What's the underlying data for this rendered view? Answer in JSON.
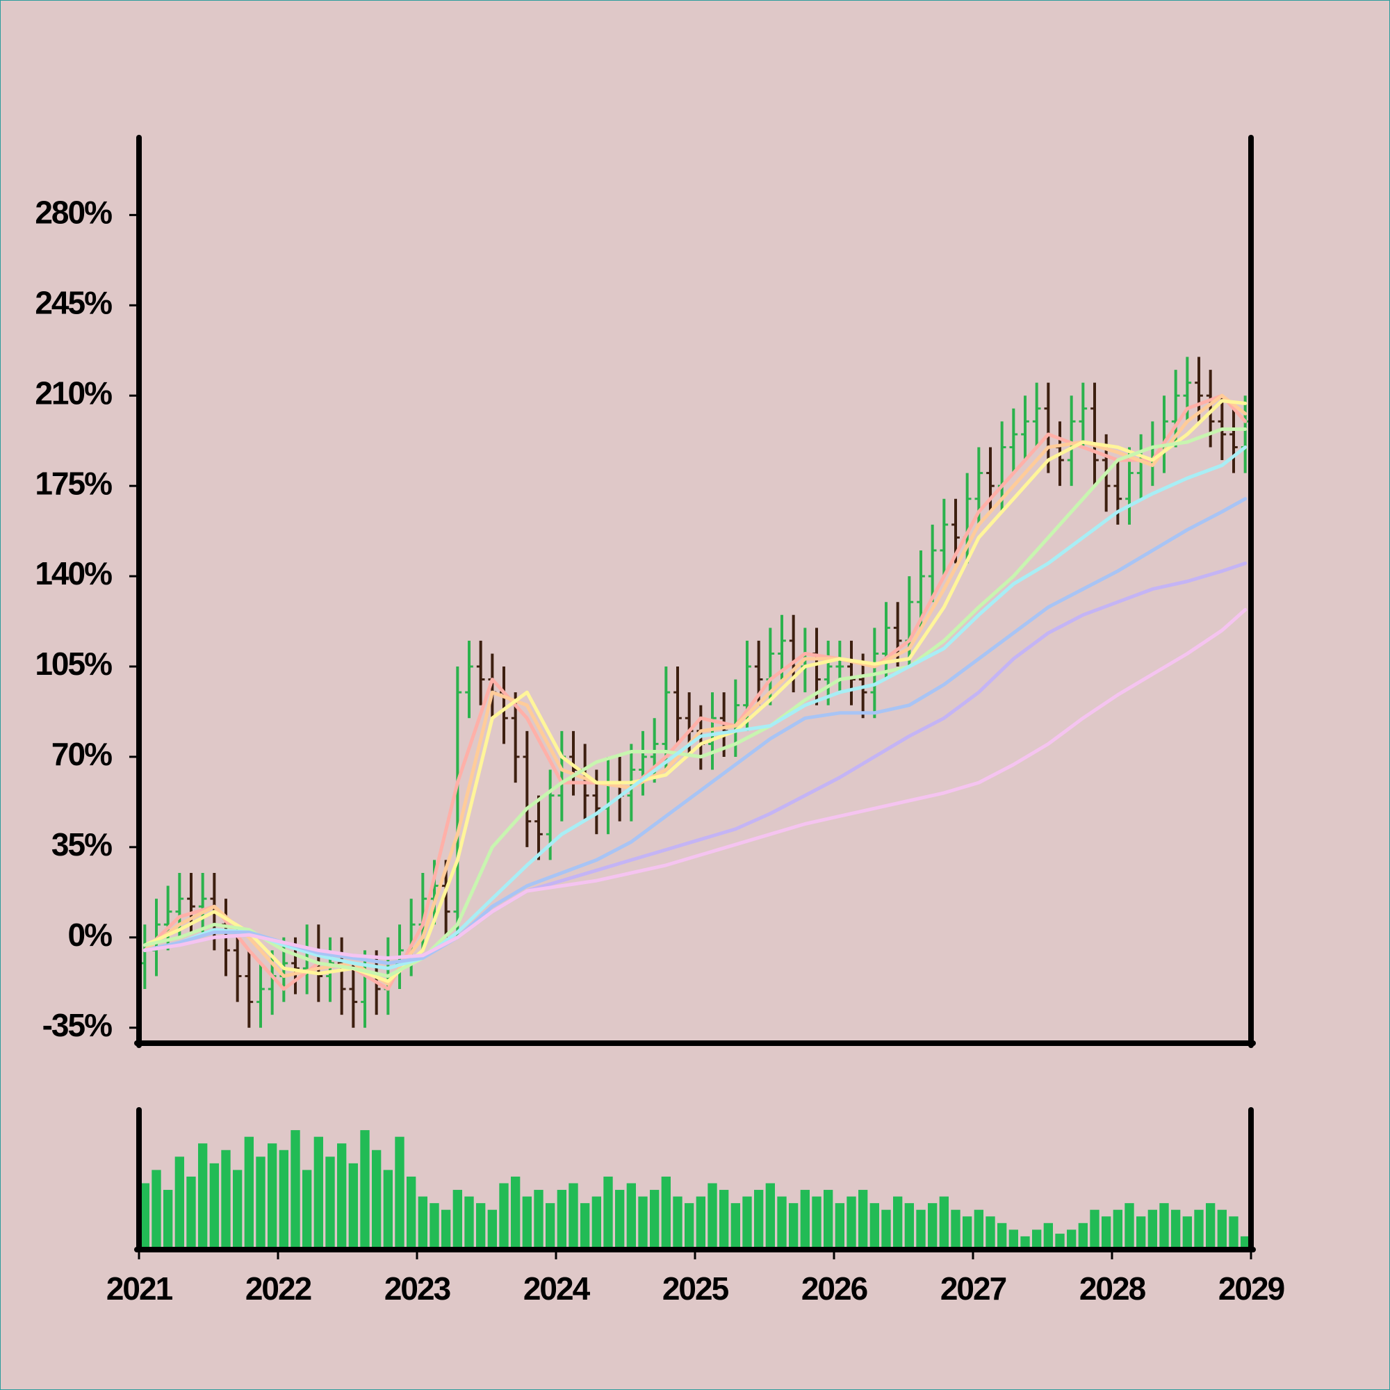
{
  "chart_data": {
    "type": "ohlc",
    "x": [
      "2021-01",
      "2021-02",
      "2021-03",
      "2021-04",
      "2021-05",
      "2021-06",
      "2021-07",
      "2021-08",
      "2021-09",
      "2021-10",
      "2021-11",
      "2021-12",
      "2022-01",
      "2022-02",
      "2022-03",
      "2022-04",
      "2022-05",
      "2022-06",
      "2022-07",
      "2022-08",
      "2022-09",
      "2022-10",
      "2022-11",
      "2022-12",
      "2023-01",
      "2023-02",
      "2023-03",
      "2023-04",
      "2023-05",
      "2023-06",
      "2023-07",
      "2023-08",
      "2023-09",
      "2023-10",
      "2023-11",
      "2023-12",
      "2024-01",
      "2024-02",
      "2024-03",
      "2024-04",
      "2024-05",
      "2024-06",
      "2024-07",
      "2024-08",
      "2024-09",
      "2024-10",
      "2024-11",
      "2024-12",
      "2025-01",
      "2025-02",
      "2025-03",
      "2025-04",
      "2025-05",
      "2025-06",
      "2025-07",
      "2025-08",
      "2025-09",
      "2025-10",
      "2025-11",
      "2025-12",
      "2026-01",
      "2026-02",
      "2026-03",
      "2026-04",
      "2026-05",
      "2026-06",
      "2026-07",
      "2026-08",
      "2026-09",
      "2026-10",
      "2026-11",
      "2026-12",
      "2027-01",
      "2027-02",
      "2027-03",
      "2027-04",
      "2027-05",
      "2027-06",
      "2027-07",
      "2027-08",
      "2027-09",
      "2027-10",
      "2027-11",
      "2027-12",
      "2028-01",
      "2028-02",
      "2028-03",
      "2028-04",
      "2028-05",
      "2028-06",
      "2028-07",
      "2028-08",
      "2028-09",
      "2028-10",
      "2028-11",
      "2028-12"
    ],
    "open": [
      -10,
      -5,
      5,
      10,
      15,
      12,
      15,
      5,
      -5,
      -15,
      -25,
      -20,
      -15,
      -10,
      -12,
      -5,
      -15,
      -10,
      -20,
      -25,
      -15,
      -20,
      -10,
      -5,
      5,
      15,
      20,
      10,
      95,
      105,
      100,
      95,
      85,
      70,
      45,
      40,
      55,
      70,
      65,
      55,
      50,
      60,
      55,
      65,
      70,
      75,
      95,
      85,
      80,
      75,
      85,
      80,
      90,
      105,
      100,
      110,
      115,
      105,
      110,
      100,
      105,
      105,
      100,
      95,
      110,
      120,
      115,
      130,
      140,
      150,
      160,
      155,
      170,
      180,
      175,
      190,
      195,
      200,
      205,
      190,
      185,
      200,
      205,
      185,
      175,
      170,
      180,
      185,
      190,
      200,
      210,
      215,
      210,
      200,
      195,
      190
    ],
    "high": [
      5,
      15,
      20,
      25,
      25,
      25,
      25,
      15,
      5,
      -5,
      -10,
      -5,
      0,
      0,
      5,
      5,
      0,
      0,
      -10,
      -5,
      -5,
      0,
      5,
      15,
      25,
      30,
      30,
      105,
      115,
      115,
      110,
      105,
      95,
      80,
      55,
      65,
      80,
      80,
      75,
      65,
      70,
      70,
      75,
      80,
      85,
      105,
      105,
      95,
      90,
      95,
      95,
      100,
      115,
      115,
      120,
      125,
      125,
      120,
      120,
      115,
      115,
      115,
      110,
      120,
      130,
      130,
      140,
      150,
      160,
      170,
      170,
      180,
      190,
      190,
      200,
      205,
      210,
      215,
      215,
      200,
      210,
      215,
      215,
      195,
      185,
      190,
      195,
      200,
      210,
      220,
      225,
      225,
      220,
      210,
      205,
      210
    ],
    "low": [
      -20,
      -15,
      -5,
      0,
      2,
      2,
      -5,
      -15,
      -25,
      -35,
      -35,
      -30,
      -25,
      -22,
      -22,
      -25,
      -25,
      -30,
      -35,
      -35,
      -30,
      -30,
      -20,
      -15,
      -5,
      5,
      0,
      0,
      85,
      90,
      85,
      75,
      60,
      35,
      30,
      30,
      45,
      55,
      45,
      40,
      40,
      45,
      45,
      55,
      60,
      65,
      75,
      70,
      65,
      65,
      70,
      70,
      80,
      90,
      90,
      100,
      95,
      95,
      90,
      90,
      95,
      90,
      85,
      85,
      100,
      105,
      105,
      120,
      130,
      140,
      145,
      145,
      160,
      165,
      165,
      180,
      185,
      190,
      180,
      175,
      175,
      190,
      175,
      165,
      160,
      160,
      170,
      175,
      180,
      190,
      200,
      200,
      190,
      185,
      180,
      180
    ],
    "close": [
      -5,
      5,
      10,
      15,
      12,
      15,
      5,
      -5,
      -15,
      -25,
      -20,
      -15,
      -10,
      -12,
      -5,
      -15,
      -10,
      -20,
      -25,
      -15,
      -20,
      -10,
      -5,
      5,
      15,
      20,
      10,
      95,
      105,
      100,
      95,
      85,
      70,
      45,
      40,
      55,
      70,
      65,
      55,
      50,
      60,
      55,
      65,
      70,
      75,
      95,
      85,
      80,
      75,
      85,
      80,
      90,
      105,
      100,
      110,
      115,
      105,
      110,
      100,
      105,
      105,
      100,
      95,
      110,
      120,
      115,
      130,
      140,
      150,
      160,
      155,
      170,
      180,
      175,
      190,
      195,
      200,
      205,
      190,
      185,
      200,
      205,
      185,
      175,
      170,
      180,
      185,
      190,
      200,
      210,
      215,
      210,
      200,
      195,
      190,
      200
    ],
    "up_color": "#2bb24c",
    "down_color": "#3d1f10",
    "ylim": [
      -41,
      310
    ],
    "yticks": [
      {
        "value": -35,
        "label": "-35%"
      },
      {
        "value": 0,
        "label": "0%"
      },
      {
        "value": 35,
        "label": "35%"
      },
      {
        "value": 70,
        "label": "70%"
      },
      {
        "value": 105,
        "label": "105%"
      },
      {
        "value": 140,
        "label": "140%"
      },
      {
        "value": 175,
        "label": "175%"
      },
      {
        "value": 210,
        "label": "210%"
      },
      {
        "value": 245,
        "label": "245%"
      },
      {
        "value": 280,
        "label": "280%"
      }
    ],
    "xlim": [
      2021,
      2029
    ],
    "xticks": [
      2021,
      2022,
      2023,
      2024,
      2025,
      2026,
      2027,
      2028,
      2029
    ],
    "moving_averages": {
      "x": [
        "2021-01",
        "2021-04",
        "2021-07",
        "2021-10",
        "2022-01",
        "2022-04",
        "2022-07",
        "2022-10",
        "2023-01",
        "2023-04",
        "2023-07",
        "2023-10",
        "2024-01",
        "2024-04",
        "2024-07",
        "2024-10",
        "2025-01",
        "2025-04",
        "2025-07",
        "2025-10",
        "2026-01",
        "2026-04",
        "2026-07",
        "2026-10",
        "2027-01",
        "2027-04",
        "2027-07",
        "2027-10",
        "2028-01",
        "2028-04",
        "2028-07",
        "2028-10",
        "2028-12"
      ],
      "series": [
        {
          "color": "#ffb0a8",
          "values": [
            -5,
            8,
            12,
            -5,
            -20,
            -10,
            -12,
            -20,
            5,
            60,
            100,
            85,
            60,
            60,
            58,
            70,
            85,
            82,
            100,
            110,
            108,
            105,
            115,
            140,
            165,
            180,
            195,
            190,
            185,
            185,
            205,
            210,
            200
          ]
        },
        {
          "color": "#ffcc99",
          "values": [
            -5,
            5,
            12,
            0,
            -15,
            -12,
            -10,
            -18,
            0,
            40,
            95,
            90,
            65,
            60,
            58,
            65,
            80,
            82,
            95,
            108,
            108,
            105,
            112,
            135,
            160,
            175,
            190,
            192,
            188,
            183,
            200,
            210,
            203
          ]
        },
        {
          "color": "#fff59a",
          "values": [
            -3,
            3,
            10,
            2,
            -12,
            -14,
            -12,
            -17,
            -5,
            30,
            85,
            95,
            70,
            60,
            60,
            63,
            75,
            80,
            92,
            105,
            108,
            106,
            108,
            128,
            155,
            170,
            185,
            192,
            190,
            185,
            195,
            208,
            207
          ]
        },
        {
          "color": "#c8f5b0",
          "values": [
            -3,
            0,
            5,
            3,
            -5,
            -10,
            -12,
            -15,
            -8,
            5,
            35,
            50,
            60,
            68,
            72,
            72,
            70,
            75,
            82,
            92,
            100,
            102,
            105,
            115,
            128,
            140,
            155,
            170,
            185,
            190,
            192,
            197,
            197
          ]
        },
        {
          "color": "#a8eef5",
          "values": [
            -5,
            -2,
            3,
            2,
            -3,
            -7,
            -10,
            -12,
            -8,
            2,
            15,
            28,
            40,
            48,
            58,
            68,
            78,
            80,
            82,
            90,
            95,
            98,
            105,
            112,
            125,
            137,
            145,
            155,
            165,
            172,
            178,
            183,
            190
          ]
        },
        {
          "color": "#a8c4f5",
          "values": [
            -5,
            -2,
            2,
            2,
            -2,
            -6,
            -8,
            -10,
            -8,
            0,
            12,
            20,
            25,
            30,
            37,
            47,
            57,
            67,
            77,
            85,
            87,
            87,
            90,
            98,
            108,
            118,
            128,
            135,
            142,
            150,
            158,
            165,
            170
          ]
        },
        {
          "color": "#c4b4f5",
          "values": [
            -5,
            -3,
            0,
            1,
            -2,
            -5,
            -7,
            -8,
            -7,
            0,
            10,
            18,
            22,
            26,
            30,
            34,
            38,
            42,
            48,
            55,
            62,
            70,
            78,
            85,
            95,
            108,
            118,
            125,
            130,
            135,
            138,
            142,
            145
          ]
        },
        {
          "color": "#f5c4f0",
          "values": [
            -5,
            -3,
            0,
            1,
            -2,
            -5,
            -7,
            -8,
            -7,
            0,
            10,
            18,
            20,
            22,
            25,
            28,
            32,
            36,
            40,
            44,
            47,
            50,
            53,
            56,
            60,
            67,
            75,
            85,
            94,
            102,
            110,
            119,
            127
          ]
        }
      ]
    },
    "volume": {
      "color": "#22bb55",
      "ylim": [
        0,
        100
      ],
      "values": [
        50,
        60,
        45,
        70,
        55,
        80,
        65,
        75,
        60,
        85,
        70,
        80,
        75,
        90,
        60,
        85,
        70,
        80,
        65,
        90,
        75,
        60,
        85,
        55,
        40,
        35,
        30,
        45,
        40,
        35,
        30,
        50,
        55,
        40,
        45,
        35,
        45,
        50,
        35,
        40,
        55,
        45,
        50,
        40,
        45,
        55,
        40,
        35,
        40,
        50,
        45,
        35,
        40,
        45,
        50,
        40,
        35,
        45,
        40,
        45,
        35,
        40,
        45,
        35,
        30,
        40,
        35,
        30,
        35,
        40,
        30,
        25,
        30,
        25,
        20,
        15,
        10,
        15,
        20,
        12,
        15,
        20,
        30,
        25,
        30,
        35,
        25,
        30,
        35,
        30,
        25,
        30,
        35,
        30,
        25,
        10
      ]
    }
  }
}
